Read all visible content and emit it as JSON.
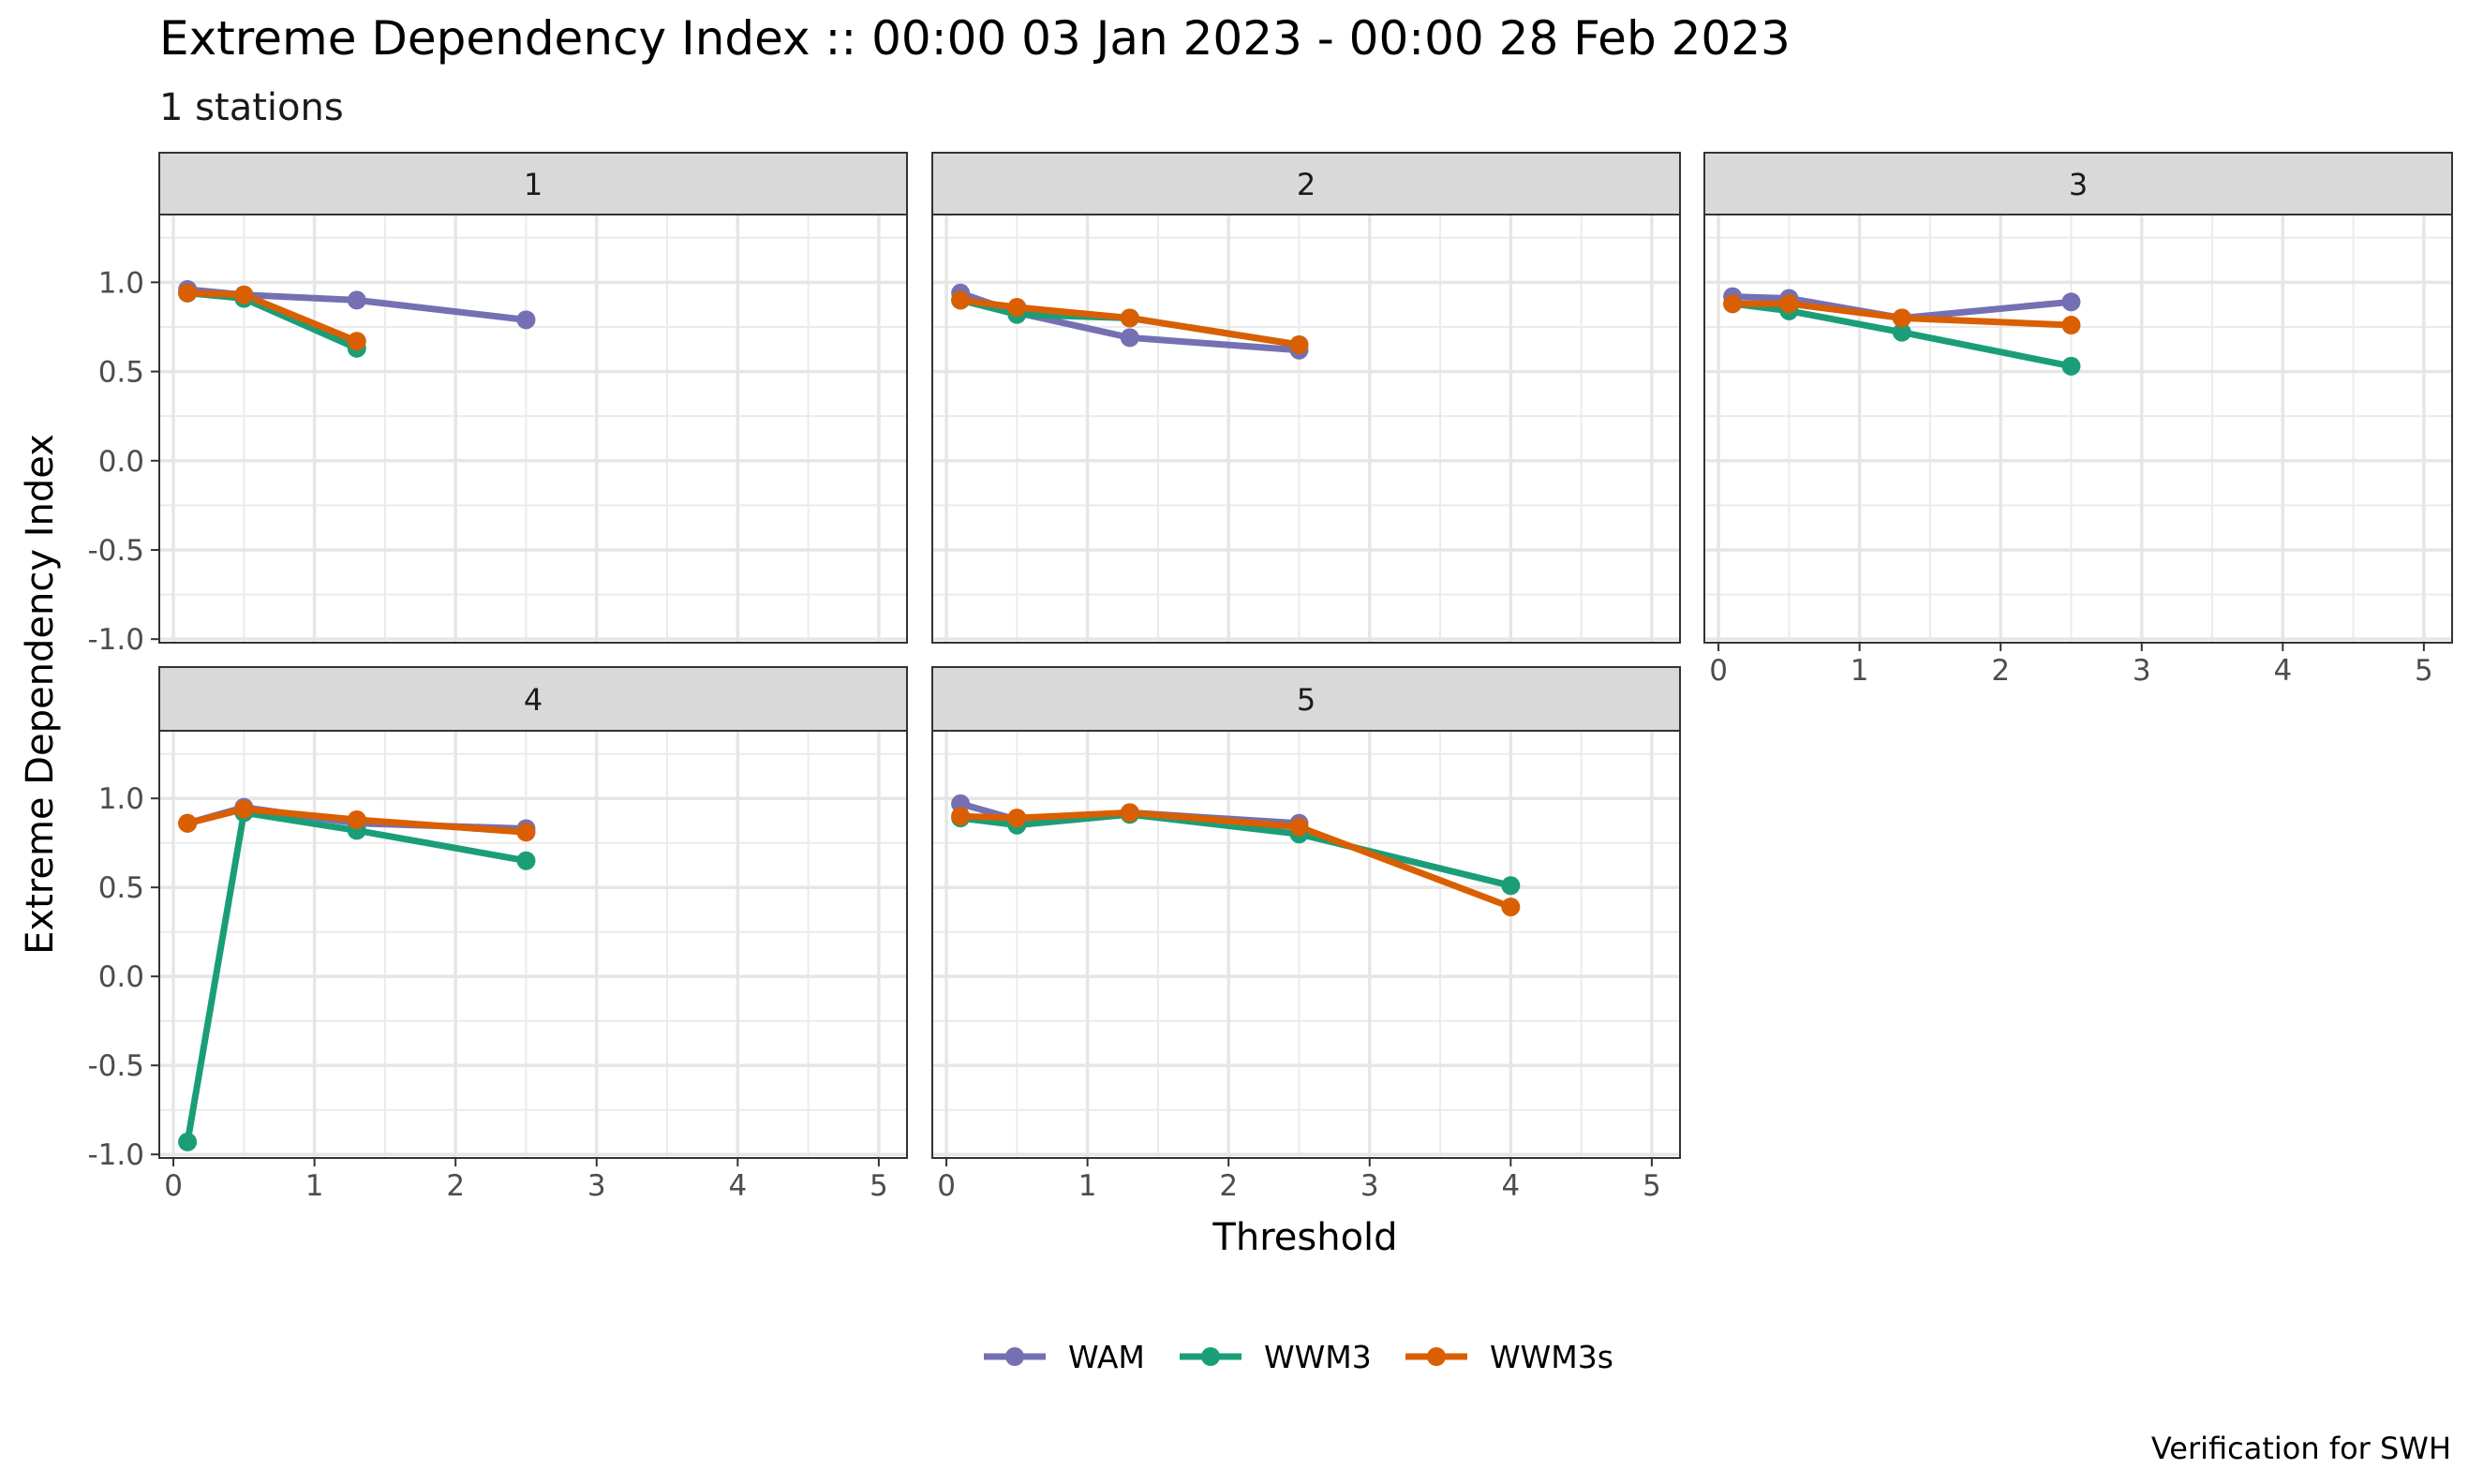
{
  "chart_data": {
    "type": "line",
    "title": "Extreme Dependency Index :: 00:00 03 Jan 2023 - 00:00 28 Feb 2023",
    "subtitle": "1 stations",
    "xlabel": "Threshold",
    "ylabel": "Extreme Dependency Index",
    "caption": "Verification for SWH",
    "xlim": [
      -0.1,
      5.2
    ],
    "ylim": [
      -1.02,
      1.38
    ],
    "xticks": [
      0,
      1,
      2,
      3,
      4,
      5
    ],
    "xtick_labels": [
      "0",
      "1",
      "2",
      "3",
      "4",
      "5"
    ],
    "yticks": [
      -1.0,
      -0.5,
      0.0,
      0.5,
      1.0
    ],
    "ytick_labels": [
      "-1.0",
      "-0.5",
      "0.0",
      "0.5",
      "1.0"
    ],
    "grid": true,
    "legend_position": "bottom",
    "series_meta": [
      {
        "name": "WAM",
        "color": "#7570b3"
      },
      {
        "name": "WWM3",
        "color": "#1b9e77"
      },
      {
        "name": "WWM3s",
        "color": "#d95f02"
      }
    ],
    "panels": [
      {
        "label": "1",
        "series": [
          {
            "name": "WAM",
            "x": [
              0.1,
              0.5,
              1.3,
              2.5
            ],
            "y": [
              0.96,
              0.93,
              0.9,
              0.79
            ]
          },
          {
            "name": "WWM3",
            "x": [
              0.1,
              0.5,
              1.3
            ],
            "y": [
              0.94,
              0.91,
              0.63
            ]
          },
          {
            "name": "WWM3s",
            "x": [
              0.1,
              0.5,
              1.3
            ],
            "y": [
              0.94,
              0.93,
              0.67
            ]
          }
        ]
      },
      {
        "label": "2",
        "series": [
          {
            "name": "WAM",
            "x": [
              0.1,
              0.5,
              1.3,
              2.5
            ],
            "y": [
              0.94,
              0.83,
              0.69,
              0.62
            ]
          },
          {
            "name": "WWM3",
            "x": [
              0.1,
              0.5,
              1.3,
              2.5
            ],
            "y": [
              0.9,
              0.82,
              0.8,
              0.65
            ]
          },
          {
            "name": "WWM3s",
            "x": [
              0.1,
              0.5,
              1.3,
              2.5
            ],
            "y": [
              0.9,
              0.86,
              0.8,
              0.65
            ]
          }
        ]
      },
      {
        "label": "3",
        "series": [
          {
            "name": "WAM",
            "x": [
              0.1,
              0.5,
              1.3,
              2.5
            ],
            "y": [
              0.92,
              0.91,
              0.8,
              0.89
            ]
          },
          {
            "name": "WWM3",
            "x": [
              0.1,
              0.5,
              1.3,
              2.5
            ],
            "y": [
              0.88,
              0.84,
              0.72,
              0.53
            ]
          },
          {
            "name": "WWM3s",
            "x": [
              0.1,
              0.5,
              1.3,
              2.5
            ],
            "y": [
              0.88,
              0.88,
              0.8,
              0.76
            ]
          }
        ]
      },
      {
        "label": "4",
        "series": [
          {
            "name": "WAM",
            "x": [
              0.1,
              0.5,
              1.3,
              2.5
            ],
            "y": [
              0.86,
              0.95,
              0.86,
              0.83
            ]
          },
          {
            "name": "WWM3",
            "x": [
              0.1,
              0.5,
              1.3,
              2.5
            ],
            "y": [
              -0.93,
              0.92,
              0.82,
              0.65
            ]
          },
          {
            "name": "WWM3s",
            "x": [
              0.1,
              0.5,
              1.3,
              2.5
            ],
            "y": [
              0.86,
              0.94,
              0.88,
              0.81
            ]
          }
        ]
      },
      {
        "label": "5",
        "series": [
          {
            "name": "WAM",
            "x": [
              0.1,
              0.5,
              1.3,
              2.5
            ],
            "y": [
              0.97,
              0.88,
              0.92,
              0.86
            ]
          },
          {
            "name": "WWM3",
            "x": [
              0.1,
              0.5,
              1.3,
              2.5,
              4.0
            ],
            "y": [
              0.89,
              0.85,
              0.91,
              0.8,
              0.51
            ]
          },
          {
            "name": "WWM3s",
            "x": [
              0.1,
              0.5,
              1.3,
              2.5,
              4.0
            ],
            "y": [
              0.9,
              0.89,
              0.92,
              0.84,
              0.39
            ]
          }
        ]
      }
    ]
  }
}
